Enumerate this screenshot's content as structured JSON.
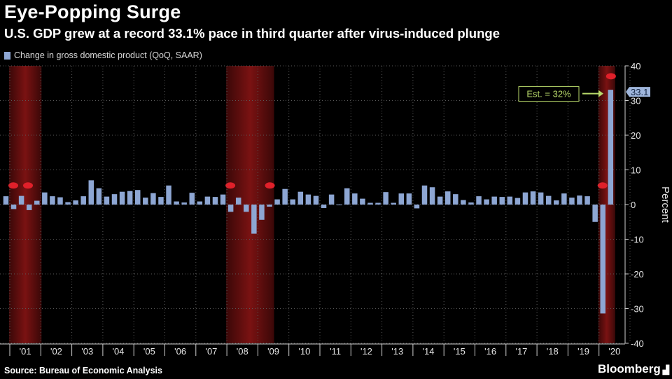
{
  "header": {
    "title": "Eye-Popping Surge",
    "subtitle": "U.S. GDP grew at a record 33.1% pace in third quarter after virus-induced plunge"
  },
  "footer": {
    "source": "Source: Bureau of Economic Analysis",
    "brand": "Bloomberg"
  },
  "colors": {
    "background": "#000000",
    "bar": "#8da6d3",
    "recession": "#7a1212",
    "marker": "#e0202a",
    "estimate": "#b8d96a",
    "grid": "#5a5a5a"
  },
  "chart_data": {
    "type": "bar",
    "series": [
      {
        "name": "Change in gross domestic product (QoQ, SAAR)",
        "start_year": 2000,
        "start_quarter": 4
      }
    ],
    "years": [
      "'01",
      "'02",
      "'03",
      "'04",
      "'05",
      "'06",
      "'07",
      "'08",
      "'09",
      "'10",
      "'11",
      "'12",
      "'13",
      "'14",
      "'15",
      "'16",
      "'17",
      "'18",
      "'19",
      "'20"
    ],
    "values": [
      2.4,
      -1.3,
      2.5,
      -1.6,
      1.1,
      3.5,
      2.4,
      2.1,
      0.7,
      1.2,
      2.4,
      7.0,
      4.7,
      2.3,
      3.0,
      3.7,
      3.9,
      4.2,
      2.0,
      3.3,
      2.2,
      5.5,
      0.9,
      0.6,
      3.4,
      0.9,
      2.3,
      2.2,
      2.9,
      -2.1,
      2.0,
      -2.1,
      -8.4,
      -4.4,
      -0.6,
      1.5,
      4.5,
      1.5,
      3.7,
      2.9,
      2.5,
      -1.0,
      2.9,
      -0.1,
      4.7,
      3.2,
      1.7,
      0.5,
      0.5,
      3.6,
      0.5,
      3.2,
      3.2,
      -1.1,
      5.5,
      5.0,
      2.3,
      3.8,
      3.0,
      1.3,
      0.6,
      2.4,
      1.5,
      2.3,
      2.2,
      2.3,
      1.9,
      3.5,
      3.8,
      3.5,
      2.5,
      1.2,
      3.2,
      2.0,
      2.6,
      2.4,
      -5.0,
      -31.4,
      33.1
    ],
    "ylim": [
      -40,
      40
    ],
    "yticks": [
      -40,
      -30,
      -20,
      -10,
      0,
      10,
      20,
      30,
      40
    ],
    "ylabel": "Percent",
    "recessions": [
      {
        "start": "2001-Q1",
        "end": "2001-Q4"
      },
      {
        "start": "2008-Q1",
        "end": "2009-Q2"
      },
      {
        "start": "2020-Q1",
        "end": "2020-Q2"
      }
    ],
    "last_value_label": "33.1",
    "estimate": {
      "label": "Est. = 32%",
      "value": 32
    },
    "grid": true,
    "legend_position": "top-left"
  }
}
